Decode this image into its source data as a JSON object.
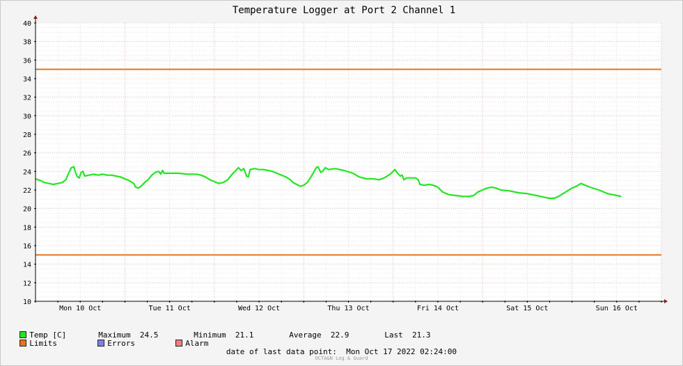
{
  "chart_data": {
    "type": "line",
    "title": "Temperature Logger at Port 2 Channel 1",
    "ylim": [
      10,
      40
    ],
    "yticks": [
      10,
      12,
      14,
      16,
      18,
      20,
      22,
      24,
      26,
      28,
      30,
      32,
      34,
      36,
      38,
      40
    ],
    "xlim_days": [
      0,
      7
    ],
    "xtick_labels": [
      "Mon 10 Oct",
      "Tue 11 Oct",
      "Wed 12 Oct",
      "Thu 13 Oct",
      "Fri 14 Oct",
      "Sat 15 Oct",
      "Sun 16 Oct"
    ],
    "grid": true,
    "limits": {
      "upper": 35,
      "lower": 15,
      "color": "#e8731a"
    },
    "series": [
      {
        "name": "Temp [C]",
        "color": "#22e622",
        "points": [
          [
            0.0,
            23.2
          ],
          [
            0.06,
            23.0
          ],
          [
            0.1,
            22.8
          ],
          [
            0.15,
            22.7
          ],
          [
            0.2,
            22.6
          ],
          [
            0.25,
            22.7
          ],
          [
            0.3,
            22.8
          ],
          [
            0.34,
            23.1
          ],
          [
            0.37,
            23.8
          ],
          [
            0.4,
            24.4
          ],
          [
            0.43,
            24.5
          ],
          [
            0.45,
            23.8
          ],
          [
            0.47,
            23.4
          ],
          [
            0.49,
            23.3
          ],
          [
            0.51,
            23.9
          ],
          [
            0.53,
            24.0
          ],
          [
            0.55,
            23.5
          ],
          [
            0.6,
            23.6
          ],
          [
            0.65,
            23.7
          ],
          [
            0.7,
            23.6
          ],
          [
            0.75,
            23.7
          ],
          [
            0.8,
            23.6
          ],
          [
            0.85,
            23.6
          ],
          [
            0.9,
            23.5
          ],
          [
            0.95,
            23.4
          ],
          [
            1.0,
            23.2
          ],
          [
            1.05,
            23.0
          ],
          [
            1.08,
            22.8
          ],
          [
            1.1,
            22.7
          ],
          [
            1.12,
            22.3
          ],
          [
            1.15,
            22.2
          ],
          [
            1.18,
            22.4
          ],
          [
            1.22,
            22.8
          ],
          [
            1.26,
            23.1
          ],
          [
            1.3,
            23.6
          ],
          [
            1.34,
            23.9
          ],
          [
            1.38,
            24.0
          ],
          [
            1.4,
            23.7
          ],
          [
            1.42,
            24.1
          ],
          [
            1.44,
            23.8
          ],
          [
            1.5,
            23.8
          ],
          [
            1.6,
            23.8
          ],
          [
            1.7,
            23.7
          ],
          [
            1.8,
            23.7
          ],
          [
            1.85,
            23.6
          ],
          [
            1.9,
            23.4
          ],
          [
            1.95,
            23.1
          ],
          [
            2.0,
            22.9
          ],
          [
            2.05,
            22.7
          ],
          [
            2.1,
            22.8
          ],
          [
            2.15,
            23.1
          ],
          [
            2.2,
            23.7
          ],
          [
            2.24,
            24.1
          ],
          [
            2.27,
            24.4
          ],
          [
            2.3,
            24.1
          ],
          [
            2.33,
            24.3
          ],
          [
            2.36,
            23.5
          ],
          [
            2.38,
            23.4
          ],
          [
            2.4,
            24.2
          ],
          [
            2.45,
            24.3
          ],
          [
            2.5,
            24.2
          ],
          [
            2.55,
            24.2
          ],
          [
            2.6,
            24.1
          ],
          [
            2.65,
            24.0
          ],
          [
            2.7,
            23.8
          ],
          [
            2.75,
            23.6
          ],
          [
            2.8,
            23.4
          ],
          [
            2.85,
            23.1
          ],
          [
            2.88,
            22.8
          ],
          [
            2.92,
            22.6
          ],
          [
            2.96,
            22.4
          ],
          [
            3.0,
            22.5
          ],
          [
            3.04,
            22.8
          ],
          [
            3.08,
            23.4
          ],
          [
            3.11,
            23.9
          ],
          [
            3.14,
            24.4
          ],
          [
            3.16,
            24.5
          ],
          [
            3.19,
            23.9
          ],
          [
            3.21,
            24.0
          ],
          [
            3.24,
            24.4
          ],
          [
            3.28,
            24.2
          ],
          [
            3.35,
            24.3
          ],
          [
            3.45,
            24.1
          ],
          [
            3.55,
            23.8
          ],
          [
            3.62,
            23.4
          ],
          [
            3.7,
            23.2
          ],
          [
            3.78,
            23.2
          ],
          [
            3.84,
            23.1
          ],
          [
            3.9,
            23.3
          ],
          [
            3.95,
            23.6
          ],
          [
            3.99,
            23.9
          ],
          [
            4.02,
            24.2
          ],
          [
            4.05,
            23.8
          ],
          [
            4.08,
            23.5
          ],
          [
            4.1,
            23.6
          ],
          [
            4.12,
            23.1
          ],
          [
            4.15,
            23.3
          ],
          [
            4.2,
            23.3
          ],
          [
            4.25,
            23.3
          ],
          [
            4.28,
            23.1
          ],
          [
            4.3,
            22.6
          ],
          [
            4.35,
            22.5
          ],
          [
            4.4,
            22.6
          ],
          [
            4.45,
            22.5
          ],
          [
            4.5,
            22.3
          ],
          [
            4.55,
            21.8
          ],
          [
            4.62,
            21.5
          ],
          [
            4.7,
            21.4
          ],
          [
            4.78,
            21.3
          ],
          [
            4.85,
            21.3
          ],
          [
            4.9,
            21.4
          ],
          [
            4.95,
            21.8
          ],
          [
            5.0,
            22.0
          ],
          [
            5.05,
            22.2
          ],
          [
            5.1,
            22.3
          ],
          [
            5.15,
            22.2
          ],
          [
            5.2,
            22.0
          ],
          [
            5.3,
            21.9
          ],
          [
            5.4,
            21.7
          ],
          [
            5.5,
            21.6
          ],
          [
            5.6,
            21.4
          ],
          [
            5.7,
            21.2
          ],
          [
            5.75,
            21.1
          ],
          [
            5.8,
            21.1
          ],
          [
            5.85,
            21.3
          ],
          [
            5.9,
            21.6
          ],
          [
            5.95,
            21.9
          ],
          [
            6.0,
            22.2
          ],
          [
            6.05,
            22.4
          ],
          [
            6.1,
            22.7
          ],
          [
            6.15,
            22.5
          ],
          [
            6.2,
            22.3
          ],
          [
            6.3,
            22.0
          ],
          [
            6.4,
            21.6
          ],
          [
            6.5,
            21.4
          ],
          [
            6.55,
            21.3
          ]
        ]
      }
    ],
    "x_axis_arrow": true,
    "y_axis_arrow": true
  },
  "legend": {
    "temp_label": "Temp [C]",
    "max_label": "Maximum",
    "max_value": "24.5",
    "min_label": "Minimum",
    "min_value": "21.1",
    "avg_label": "Average",
    "avg_value": "22.9",
    "last_label": "Last",
    "last_value": "21.3",
    "limits_label": "Limits",
    "errors_label": "Errors",
    "alarm_label": "Alarm",
    "limits_color": "#e8731a",
    "errors_color": "#7f7fe8",
    "alarm_color": "#ef7f7f"
  },
  "last_data_point": "date of last data point:  Mon Oct 17 2022 02:24:00",
  "watermark": "OCTA&N Log & Guard"
}
